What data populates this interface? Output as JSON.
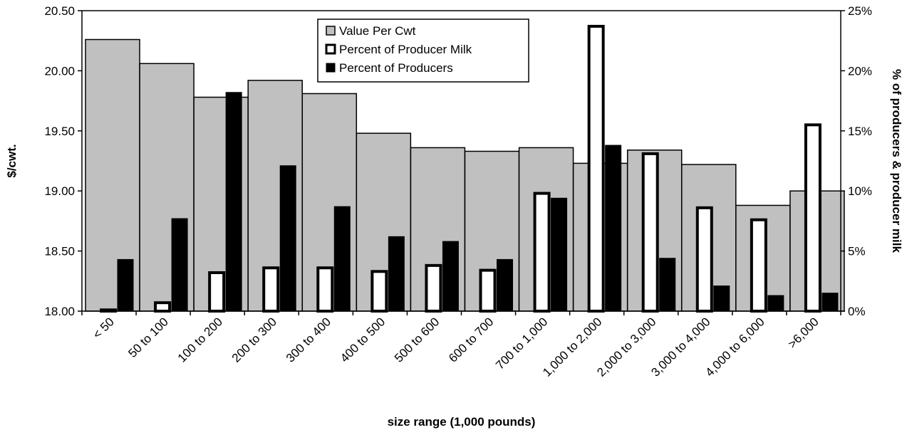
{
  "chart_data": {
    "type": "bar",
    "xlabel": "size range (1,000 pounds)",
    "ylabel": "$/cwt.",
    "y2label": "% of producers & producer milk",
    "ylim": [
      18.0,
      20.5
    ],
    "y2lim": [
      0,
      25
    ],
    "yticks": [
      "18.00",
      "18.50",
      "19.00",
      "19.50",
      "20.00",
      "20.50"
    ],
    "y2ticks": [
      "0%",
      "5%",
      "10%",
      "15%",
      "20%",
      "25%"
    ],
    "legend_position": "top-center",
    "categories": [
      "< 50",
      "50 to 100",
      "100 to 200",
      "200 to 300",
      "300 to 400",
      "400 to 500",
      "500 to 600",
      "600 to 700",
      "700 to 1,000",
      "1,000 to 2,000",
      "2,000 to 3,000",
      "3,000 to 4,000",
      "4,000 to 6,000",
      ">6,000"
    ],
    "series": [
      {
        "name": "Value Per Cwt",
        "axis": "left",
        "color": "#c0c0c0",
        "values": [
          20.26,
          20.06,
          19.78,
          19.92,
          19.81,
          19.48,
          19.36,
          19.33,
          19.36,
          19.23,
          19.34,
          19.22,
          18.88,
          19.0
        ]
      },
      {
        "name": "Percent of Producer Milk",
        "axis": "right",
        "color": "#ffffff",
        "values": [
          0.1,
          0.7,
          3.2,
          3.6,
          3.6,
          3.3,
          3.8,
          3.4,
          9.8,
          23.7,
          13.1,
          8.6,
          7.6,
          15.5
        ]
      },
      {
        "name": "Percent of Producers",
        "axis": "right",
        "color": "#000000",
        "values": [
          4.3,
          7.7,
          18.2,
          12.1,
          8.7,
          6.2,
          5.8,
          4.3,
          9.4,
          13.8,
          4.4,
          2.1,
          1.3,
          1.5
        ]
      }
    ]
  }
}
